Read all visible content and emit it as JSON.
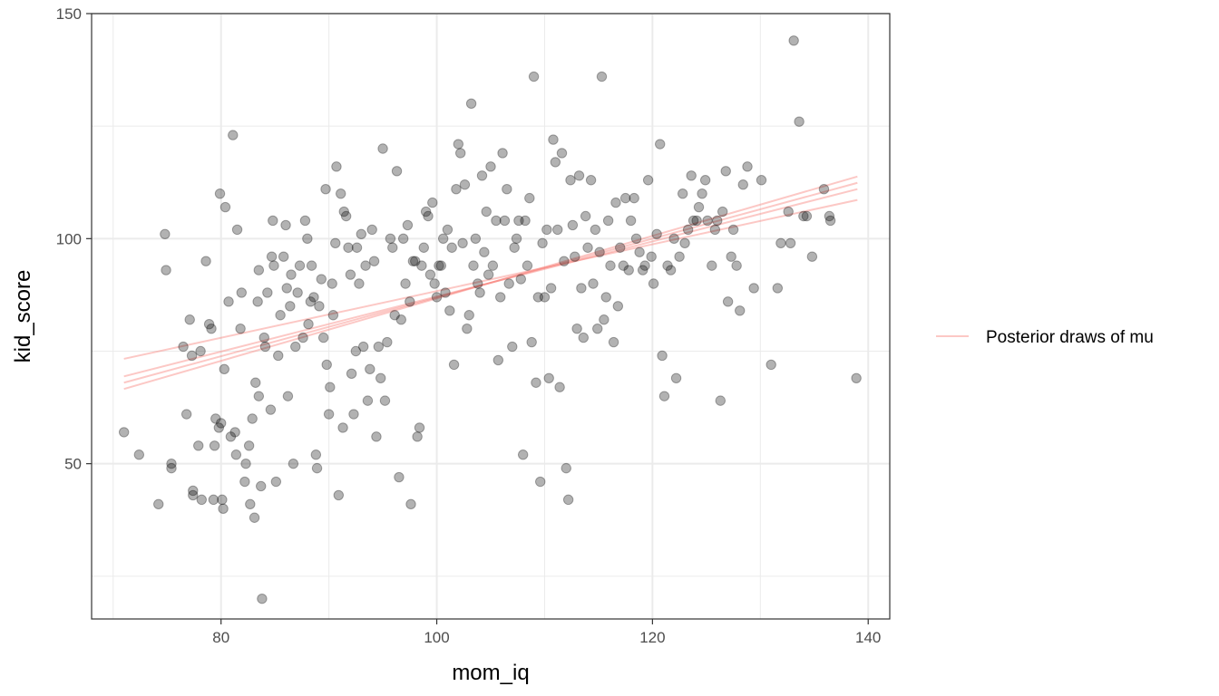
{
  "chart_data": {
    "type": "scatter",
    "xlabel": "mom_iq",
    "ylabel": "kid_score",
    "xlim": [
      68,
      142
    ],
    "ylim": [
      15.5,
      150
    ],
    "x_ticks": [
      80,
      100,
      120,
      140
    ],
    "y_ticks": [
      50,
      100,
      150
    ],
    "grid": true,
    "legend": {
      "placement": "right",
      "label": "Posterior draws of mu"
    },
    "colors": {
      "points": "#000000",
      "lines": "#f8766d",
      "panel_border": "#333333",
      "grid": "#ebebeb"
    },
    "points": [
      [
        71,
        57
      ],
      [
        72.4,
        52
      ],
      [
        74.2,
        41
      ],
      [
        74.8,
        101
      ],
      [
        74.9,
        93
      ],
      [
        75.4,
        50
      ],
      [
        75.4,
        49
      ],
      [
        76.5,
        76
      ],
      [
        76.8,
        61
      ],
      [
        77.1,
        82
      ],
      [
        77.3,
        74
      ],
      [
        77.4,
        44
      ],
      [
        77.4,
        43
      ],
      [
        77.9,
        54
      ],
      [
        78.1,
        75
      ],
      [
        78.2,
        42
      ],
      [
        78.6,
        95
      ],
      [
        78.9,
        81
      ],
      [
        79.1,
        80
      ],
      [
        79.3,
        42
      ],
      [
        79.4,
        54
      ],
      [
        79.5,
        60
      ],
      [
        79.8,
        58
      ],
      [
        79.9,
        110
      ],
      [
        80,
        59
      ],
      [
        80.1,
        42
      ],
      [
        80.2,
        40
      ],
      [
        80.3,
        71
      ],
      [
        80.4,
        107
      ],
      [
        80.7,
        86
      ],
      [
        80.9,
        56
      ],
      [
        81.1,
        123
      ],
      [
        81.3,
        57
      ],
      [
        81.4,
        52
      ],
      [
        81.5,
        102
      ],
      [
        81.8,
        80
      ],
      [
        81.9,
        88
      ],
      [
        82.2,
        46
      ],
      [
        82.3,
        50
      ],
      [
        82.6,
        54
      ],
      [
        82.7,
        41
      ],
      [
        82.9,
        60
      ],
      [
        83.1,
        38
      ],
      [
        83.2,
        68
      ],
      [
        83.4,
        86
      ],
      [
        83.5,
        65
      ],
      [
        83.5,
        93
      ],
      [
        83.7,
        45
      ],
      [
        83.8,
        20
      ],
      [
        84,
        78
      ],
      [
        84.1,
        76
      ],
      [
        84.3,
        88
      ],
      [
        84.6,
        62
      ],
      [
        84.7,
        96
      ],
      [
        84.8,
        104
      ],
      [
        84.9,
        94
      ],
      [
        85.1,
        46
      ],
      [
        85.3,
        74
      ],
      [
        85.5,
        83
      ],
      [
        85.8,
        96
      ],
      [
        86,
        103
      ],
      [
        86.1,
        89
      ],
      [
        86.2,
        65
      ],
      [
        86.4,
        85
      ],
      [
        86.5,
        92
      ],
      [
        86.7,
        50
      ],
      [
        86.9,
        76
      ],
      [
        87.1,
        88
      ],
      [
        87.3,
        94
      ],
      [
        87.6,
        78
      ],
      [
        87.8,
        104
      ],
      [
        88,
        100
      ],
      [
        88.1,
        81
      ],
      [
        88.3,
        86
      ],
      [
        88.4,
        94
      ],
      [
        88.6,
        87
      ],
      [
        88.8,
        52
      ],
      [
        88.9,
        49
      ],
      [
        89.1,
        85
      ],
      [
        89.3,
        91
      ],
      [
        89.5,
        78
      ],
      [
        89.7,
        111
      ],
      [
        89.8,
        72
      ],
      [
        90,
        61
      ],
      [
        90.1,
        67
      ],
      [
        90.3,
        90
      ],
      [
        90.4,
        83
      ],
      [
        90.6,
        99
      ],
      [
        90.7,
        116
      ],
      [
        90.9,
        43
      ],
      [
        91.1,
        110
      ],
      [
        91.3,
        58
      ],
      [
        91.4,
        106
      ],
      [
        91.6,
        105
      ],
      [
        91.8,
        98
      ],
      [
        92,
        92
      ],
      [
        92.1,
        70
      ],
      [
        92.3,
        61
      ],
      [
        92.5,
        75
      ],
      [
        92.6,
        98
      ],
      [
        92.8,
        90
      ],
      [
        93,
        101
      ],
      [
        93.2,
        76
      ],
      [
        93.4,
        94
      ],
      [
        93.6,
        64
      ],
      [
        93.8,
        71
      ],
      [
        94,
        102
      ],
      [
        94.2,
        95
      ],
      [
        94.4,
        56
      ],
      [
        94.6,
        76
      ],
      [
        94.8,
        69
      ],
      [
        95,
        120
      ],
      [
        95.2,
        64
      ],
      [
        95.4,
        77
      ],
      [
        95.7,
        100
      ],
      [
        95.9,
        98
      ],
      [
        96.1,
        83
      ],
      [
        96.3,
        115
      ],
      [
        96.5,
        47
      ],
      [
        96.7,
        82
      ],
      [
        96.9,
        100
      ],
      [
        97.1,
        90
      ],
      [
        97.3,
        103
      ],
      [
        97.5,
        86
      ],
      [
        97.6,
        41
      ],
      [
        97.8,
        95
      ],
      [
        98,
        95
      ],
      [
        98.2,
        56
      ],
      [
        98.4,
        58
      ],
      [
        98.6,
        94
      ],
      [
        98.8,
        98
      ],
      [
        99,
        106
      ],
      [
        99.2,
        105
      ],
      [
        99.4,
        92
      ],
      [
        99.6,
        108
      ],
      [
        99.8,
        90
      ],
      [
        100,
        87
      ],
      [
        100.2,
        94
      ],
      [
        100.4,
        94
      ],
      [
        100.6,
        100
      ],
      [
        100.8,
        88
      ],
      [
        101,
        102
      ],
      [
        101.2,
        84
      ],
      [
        101.4,
        98
      ],
      [
        101.6,
        72
      ],
      [
        101.8,
        111
      ],
      [
        102,
        121
      ],
      [
        102.2,
        119
      ],
      [
        102.4,
        99
      ],
      [
        102.6,
        112
      ],
      [
        102.8,
        80
      ],
      [
        103,
        83
      ],
      [
        103.2,
        130
      ],
      [
        103.4,
        94
      ],
      [
        103.6,
        100
      ],
      [
        103.8,
        90
      ],
      [
        104,
        88
      ],
      [
        104.2,
        114
      ],
      [
        104.4,
        97
      ],
      [
        104.6,
        106
      ],
      [
        104.8,
        92
      ],
      [
        105,
        116
      ],
      [
        105.2,
        94
      ],
      [
        105.5,
        104
      ],
      [
        105.7,
        73
      ],
      [
        105.9,
        87
      ],
      [
        106.1,
        119
      ],
      [
        106.3,
        104
      ],
      [
        106.5,
        111
      ],
      [
        106.7,
        90
      ],
      [
        107,
        76
      ],
      [
        107.2,
        98
      ],
      [
        107.4,
        100
      ],
      [
        107.6,
        104
      ],
      [
        107.8,
        91
      ],
      [
        108,
        52
      ],
      [
        108.2,
        104
      ],
      [
        108.4,
        94
      ],
      [
        108.6,
        109
      ],
      [
        108.8,
        77
      ],
      [
        109,
        136
      ],
      [
        109.2,
        68
      ],
      [
        109.4,
        87
      ],
      [
        109.6,
        46
      ],
      [
        109.8,
        99
      ],
      [
        110,
        87
      ],
      [
        110.2,
        102
      ],
      [
        110.4,
        69
      ],
      [
        110.6,
        89
      ],
      [
        110.8,
        122
      ],
      [
        111,
        117
      ],
      [
        111.2,
        102
      ],
      [
        111.4,
        67
      ],
      [
        111.6,
        119
      ],
      [
        111.8,
        95
      ],
      [
        112,
        49
      ],
      [
        112.2,
        42
      ],
      [
        112.4,
        113
      ],
      [
        112.6,
        103
      ],
      [
        112.8,
        96
      ],
      [
        113,
        80
      ],
      [
        113.2,
        114
      ],
      [
        113.4,
        89
      ],
      [
        113.6,
        78
      ],
      [
        113.8,
        105
      ],
      [
        114,
        98
      ],
      [
        114.3,
        113
      ],
      [
        114.5,
        90
      ],
      [
        114.7,
        102
      ],
      [
        114.9,
        80
      ],
      [
        115.1,
        97
      ],
      [
        115.3,
        136
      ],
      [
        115.5,
        82
      ],
      [
        115.7,
        87
      ],
      [
        115.9,
        104
      ],
      [
        116.1,
        94
      ],
      [
        116.4,
        77
      ],
      [
        116.6,
        108
      ],
      [
        116.8,
        85
      ],
      [
        117,
        98
      ],
      [
        117.3,
        94
      ],
      [
        117.5,
        109
      ],
      [
        117.8,
        93
      ],
      [
        118,
        104
      ],
      [
        118.3,
        109
      ],
      [
        118.5,
        100
      ],
      [
        118.8,
        97
      ],
      [
        119.1,
        93
      ],
      [
        119.3,
        94
      ],
      [
        119.6,
        113
      ],
      [
        119.9,
        96
      ],
      [
        120.1,
        90
      ],
      [
        120.4,
        101
      ],
      [
        120.7,
        121
      ],
      [
        120.9,
        74
      ],
      [
        121.1,
        65
      ],
      [
        121.4,
        94
      ],
      [
        121.7,
        93
      ],
      [
        122,
        100
      ],
      [
        122.2,
        69
      ],
      [
        122.5,
        96
      ],
      [
        122.8,
        110
      ],
      [
        123,
        99
      ],
      [
        123.3,
        102
      ],
      [
        123.6,
        114
      ],
      [
        123.8,
        104
      ],
      [
        124.1,
        104
      ],
      [
        124.3,
        107
      ],
      [
        124.6,
        110
      ],
      [
        124.9,
        113
      ],
      [
        125.1,
        104
      ],
      [
        125.5,
        94
      ],
      [
        125.8,
        102
      ],
      [
        126,
        104
      ],
      [
        126.3,
        64
      ],
      [
        126.5,
        106
      ],
      [
        126.8,
        115
      ],
      [
        127,
        86
      ],
      [
        127.3,
        96
      ],
      [
        127.5,
        102
      ],
      [
        127.8,
        94
      ],
      [
        128.1,
        84
      ],
      [
        128.4,
        112
      ],
      [
        128.8,
        116
      ],
      [
        129.4,
        89
      ],
      [
        130.1,
        113
      ],
      [
        131,
        72
      ],
      [
        131.6,
        89
      ],
      [
        131.9,
        99
      ],
      [
        132.6,
        106
      ],
      [
        132.8,
        99
      ],
      [
        133.1,
        144
      ],
      [
        133.6,
        126
      ],
      [
        134,
        105
      ],
      [
        134.3,
        105
      ],
      [
        134.8,
        96
      ],
      [
        135.9,
        111
      ],
      [
        136.4,
        105
      ],
      [
        136.5,
        104
      ],
      [
        138.9,
        69
      ]
    ],
    "lines": [
      {
        "x": [
          71,
          139
        ],
        "y": [
          73.3,
          108.6
        ]
      },
      {
        "x": [
          71,
          139
        ],
        "y": [
          69.4,
          111.0
        ]
      },
      {
        "x": [
          71,
          139
        ],
        "y": [
          68.0,
          112.4
        ]
      },
      {
        "x": [
          71,
          139
        ],
        "y": [
          66.6,
          113.8
        ]
      }
    ]
  }
}
